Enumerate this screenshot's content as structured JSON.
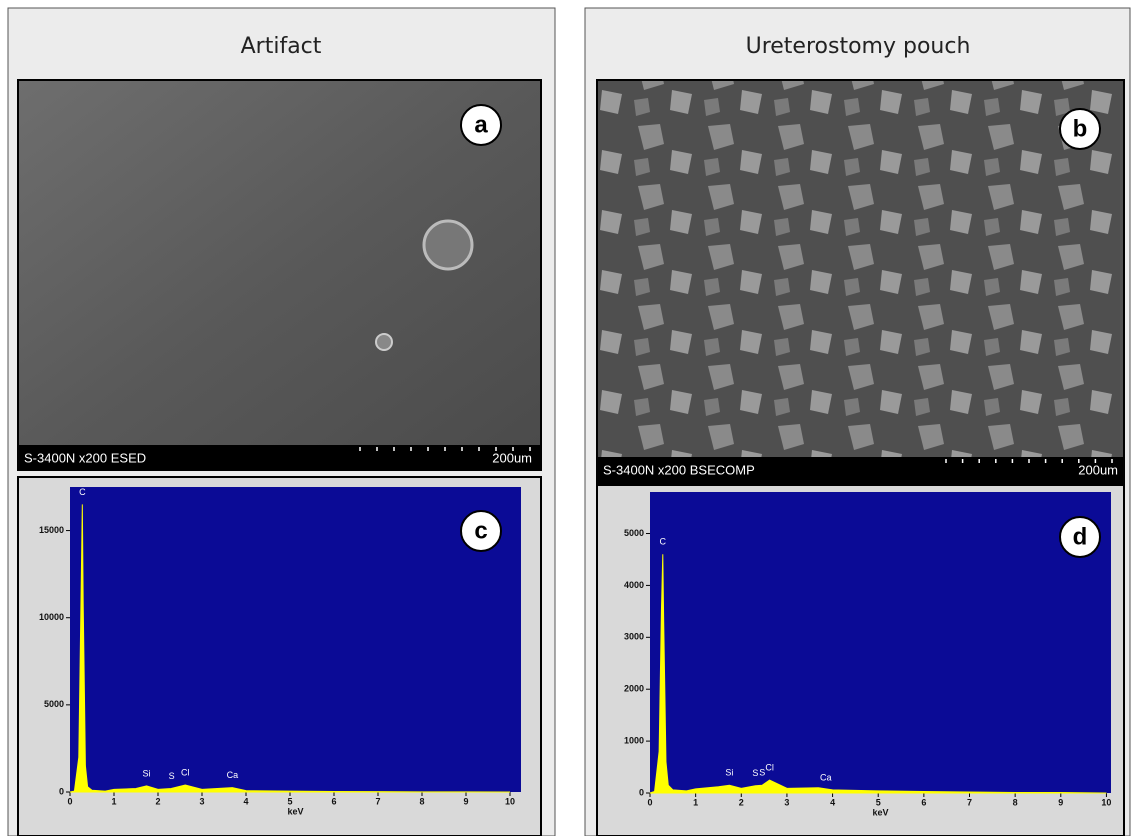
{
  "panels": [
    {
      "title": "Artifact",
      "image_label": "a",
      "caption": "S-3400N x200 ESED",
      "scale": "200um"
    },
    {
      "title": "Ureterostomy pouch",
      "image_label": "b",
      "caption": "S-3400N x200 BSECOMP",
      "scale": "200um"
    }
  ],
  "chart_data": [
    {
      "type": "line",
      "label": "c",
      "xlabel": "keV",
      "background": "#0b0b96",
      "x": [
        0,
        0.1,
        0.2,
        0.25,
        0.28,
        0.3,
        0.35,
        0.4,
        0.5,
        0.8,
        1.0,
        1.5,
        1.74,
        2.0,
        2.3,
        2.62,
        3.0,
        3.69,
        4.0,
        5,
        6,
        7,
        8,
        9,
        10
      ],
      "series": [
        {
          "color": "#ffff00",
          "values": [
            0,
            50,
            2000,
            11000,
            16500,
            10800,
            1500,
            300,
            100,
            50,
            150,
            200,
            350,
            150,
            200,
            400,
            150,
            250,
            80,
            50,
            30,
            20,
            10,
            10,
            0
          ]
        }
      ],
      "xlim": [
        0,
        10.25
      ],
      "ylim": [
        0,
        17500
      ],
      "xticks": [
        0,
        1,
        2,
        3,
        4,
        5,
        6,
        7,
        8,
        9,
        10
      ],
      "yticks": [
        0,
        5000,
        10000,
        15000
      ],
      "peak_labels": [
        {
          "text": "C",
          "x": 0.28
        },
        {
          "text": "Si",
          "x": 1.74
        },
        {
          "text": "S",
          "x": 2.31
        },
        {
          "text": "Cl",
          "x": 2.62
        },
        {
          "text": "Ca",
          "x": 3.69
        }
      ]
    },
    {
      "type": "line",
      "label": "d",
      "xlabel": "keV",
      "background": "#0b0b96",
      "x": [
        0,
        0.1,
        0.2,
        0.25,
        0.28,
        0.3,
        0.35,
        0.4,
        0.5,
        0.8,
        1.0,
        1.5,
        1.74,
        2.0,
        2.31,
        2.46,
        2.62,
        3.0,
        3.69,
        4.0,
        5,
        6,
        7,
        8,
        9,
        10
      ],
      "series": [
        {
          "color": "#ffff00",
          "values": [
            0,
            30,
            800,
            3500,
            4600,
            3300,
            600,
            150,
            60,
            40,
            80,
            120,
            150,
            90,
            140,
            150,
            250,
            90,
            100,
            60,
            40,
            30,
            20,
            10,
            10,
            0
          ]
        }
      ],
      "xlim": [
        0,
        10.1
      ],
      "ylim": [
        0,
        5800
      ],
      "xticks": [
        0,
        1,
        2,
        3,
        4,
        5,
        6,
        7,
        8,
        9,
        10
      ],
      "yticks": [
        0,
        1000,
        2000,
        3000,
        4000,
        5000
      ],
      "peak_labels": [
        {
          "text": "C",
          "x": 0.28
        },
        {
          "text": "Si",
          "x": 1.74
        },
        {
          "text": "S",
          "x": 2.31
        },
        {
          "text": "S",
          "x": 2.46
        },
        {
          "text": "Cl",
          "x": 2.62
        },
        {
          "text": "Ca",
          "x": 3.85
        }
      ]
    }
  ]
}
